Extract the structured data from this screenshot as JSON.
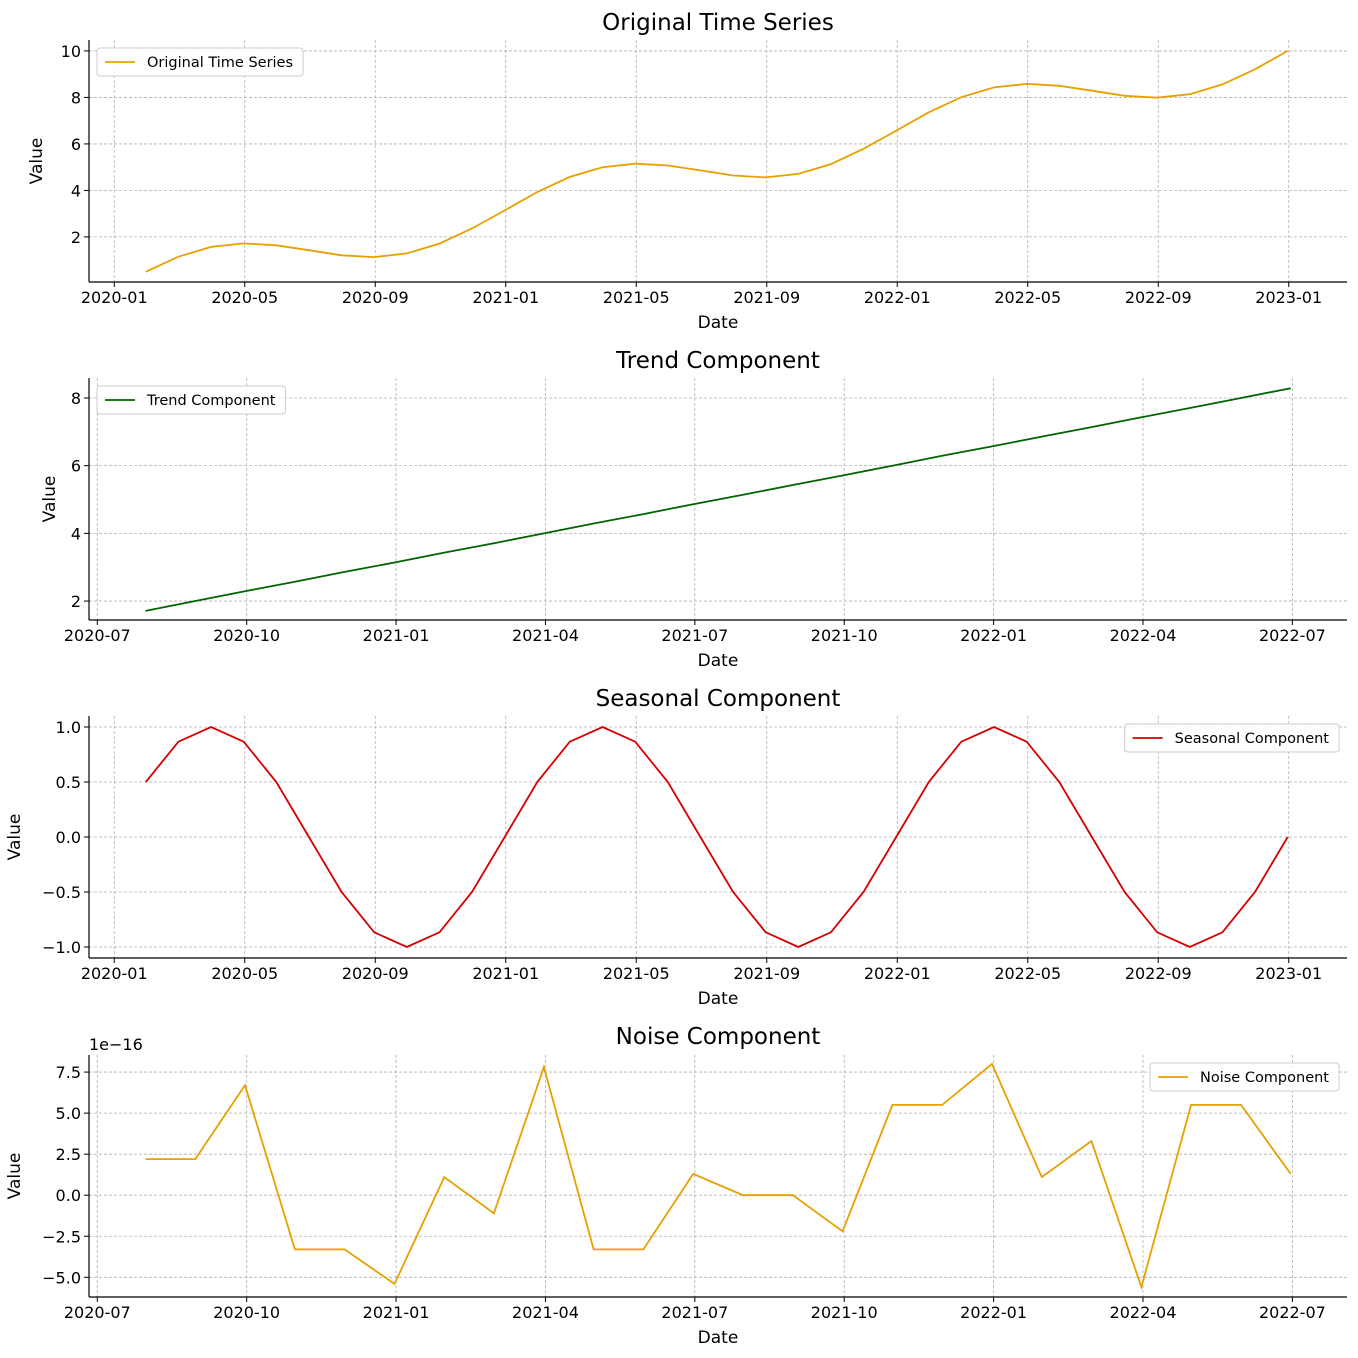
{
  "chart_data": [
    {
      "type": "line",
      "title": "Original Time Series",
      "xlabel": "Date",
      "ylabel": "Value",
      "legend": {
        "label": "Original Time Series",
        "placement": "upper-left"
      },
      "color": "#e8a000",
      "grid": true,
      "xlim": [
        "2019-12-08",
        "2023-02-23"
      ],
      "ylim": [
        0.06,
        10.47
      ],
      "xticks": [
        {
          "date": "2020-01-01",
          "label": "2020-01"
        },
        {
          "date": "2020-05-01",
          "label": "2020-05"
        },
        {
          "date": "2020-09-01",
          "label": "2020-09"
        },
        {
          "date": "2021-01-01",
          "label": "2021-01"
        },
        {
          "date": "2021-05-01",
          "label": "2021-05"
        },
        {
          "date": "2021-09-01",
          "label": "2021-09"
        },
        {
          "date": "2022-01-01",
          "label": "2022-01"
        },
        {
          "date": "2022-05-01",
          "label": "2022-05"
        },
        {
          "date": "2022-09-01",
          "label": "2022-09"
        },
        {
          "date": "2023-01-01",
          "label": "2023-01"
        }
      ],
      "yticks": [
        {
          "v": 2,
          "label": "2"
        },
        {
          "v": 4,
          "label": "4"
        },
        {
          "v": 6,
          "label": "6"
        },
        {
          "v": 8,
          "label": "8"
        },
        {
          "v": 10,
          "label": "10"
        }
      ],
      "x": [
        "2020-01-31",
        "2020-02-29",
        "2020-03-31",
        "2020-04-30",
        "2020-05-31",
        "2020-06-30",
        "2020-07-31",
        "2020-08-31",
        "2020-09-30",
        "2020-10-31",
        "2020-11-30",
        "2020-12-31",
        "2021-01-31",
        "2021-02-28",
        "2021-03-31",
        "2021-04-30",
        "2021-05-31",
        "2021-06-30",
        "2021-07-31",
        "2021-08-31",
        "2021-09-30",
        "2021-10-31",
        "2021-11-30",
        "2021-12-31",
        "2022-01-31",
        "2022-02-28",
        "2022-03-31",
        "2022-04-30",
        "2022-05-31",
        "2022-06-30",
        "2022-07-31",
        "2022-08-31",
        "2022-09-30",
        "2022-10-31",
        "2022-11-30",
        "2022-12-31"
      ],
      "values": [
        0.5,
        1.15,
        1.57,
        1.72,
        1.64,
        1.43,
        1.21,
        1.13,
        1.29,
        1.71,
        2.36,
        3.14,
        3.93,
        4.58,
        5.0,
        5.15,
        5.07,
        4.86,
        4.64,
        4.56,
        4.71,
        5.13,
        5.79,
        6.57,
        7.36,
        8.01,
        8.43,
        8.58,
        8.5,
        8.29,
        8.07,
        7.99,
        8.14,
        8.56,
        9.21,
        10.0
      ]
    },
    {
      "type": "line",
      "title": "Trend Component",
      "xlabel": "Date",
      "ylabel": "Value",
      "legend": {
        "label": "Trend Component",
        "placement": "upper-left"
      },
      "color": "#006400",
      "grid": true,
      "xlim": [
        "2020-06-26",
        "2022-08-04"
      ],
      "ylim": [
        1.44,
        8.59
      ],
      "xticks": [
        {
          "date": "2020-07-01",
          "label": "2020-07"
        },
        {
          "date": "2020-10-01",
          "label": "2020-10"
        },
        {
          "date": "2021-01-01",
          "label": "2021-01"
        },
        {
          "date": "2021-04-01",
          "label": "2021-04"
        },
        {
          "date": "2021-07-01",
          "label": "2021-07"
        },
        {
          "date": "2021-10-01",
          "label": "2021-10"
        },
        {
          "date": "2022-01-01",
          "label": "2022-01"
        },
        {
          "date": "2022-04-01",
          "label": "2022-04"
        },
        {
          "date": "2022-07-01",
          "label": "2022-07"
        }
      ],
      "yticks": [
        {
          "v": 2,
          "label": "2"
        },
        {
          "v": 4,
          "label": "4"
        },
        {
          "v": 6,
          "label": "6"
        },
        {
          "v": 8,
          "label": "8"
        }
      ],
      "x": [
        "2020-07-31",
        "2020-08-31",
        "2020-09-30",
        "2020-10-31",
        "2020-11-30",
        "2020-12-31",
        "2021-01-31",
        "2021-02-28",
        "2021-03-31",
        "2021-04-30",
        "2021-05-31",
        "2021-06-30",
        "2021-07-31",
        "2021-08-31",
        "2021-09-30",
        "2021-10-31",
        "2021-11-30",
        "2021-12-31",
        "2022-01-31",
        "2022-02-28",
        "2022-03-31",
        "2022-04-30",
        "2022-05-31",
        "2022-06-30"
      ],
      "values": [
        1.71,
        2.0,
        2.29,
        2.57,
        2.86,
        3.14,
        3.43,
        3.71,
        4.0,
        4.29,
        4.57,
        4.86,
        5.14,
        5.43,
        5.71,
        6.0,
        6.29,
        6.57,
        6.86,
        7.14,
        7.43,
        7.71,
        8.0,
        8.29
      ]
    },
    {
      "type": "line",
      "title": "Seasonal Component",
      "xlabel": "Date",
      "ylabel": "Value",
      "legend": {
        "label": "Seasonal Component",
        "placement": "upper-right"
      },
      "color": "#d40000",
      "grid": true,
      "xlim": [
        "2019-12-08",
        "2023-02-23"
      ],
      "ylim": [
        -1.1,
        1.1
      ],
      "xticks": [
        {
          "date": "2020-01-01",
          "label": "2020-01"
        },
        {
          "date": "2020-05-01",
          "label": "2020-05"
        },
        {
          "date": "2020-09-01",
          "label": "2020-09"
        },
        {
          "date": "2021-01-01",
          "label": "2021-01"
        },
        {
          "date": "2021-05-01",
          "label": "2021-05"
        },
        {
          "date": "2021-09-01",
          "label": "2021-09"
        },
        {
          "date": "2022-01-01",
          "label": "2022-01"
        },
        {
          "date": "2022-05-01",
          "label": "2022-05"
        },
        {
          "date": "2022-09-01",
          "label": "2022-09"
        },
        {
          "date": "2023-01-01",
          "label": "2023-01"
        }
      ],
      "yticks": [
        {
          "v": -1,
          "label": "−1.0"
        },
        {
          "v": -0.5,
          "label": "−0.5"
        },
        {
          "v": 0,
          "label": "0.0"
        },
        {
          "v": 0.5,
          "label": "0.5"
        },
        {
          "v": 1,
          "label": "1.0"
        }
      ],
      "x": [
        "2020-01-31",
        "2020-02-29",
        "2020-03-31",
        "2020-04-30",
        "2020-05-31",
        "2020-06-30",
        "2020-07-31",
        "2020-08-31",
        "2020-09-30",
        "2020-10-31",
        "2020-11-30",
        "2020-12-31",
        "2021-01-31",
        "2021-02-28",
        "2021-03-31",
        "2021-04-30",
        "2021-05-31",
        "2021-06-30",
        "2021-07-31",
        "2021-08-31",
        "2021-09-30",
        "2021-10-31",
        "2021-11-30",
        "2021-12-31",
        "2022-01-31",
        "2022-02-28",
        "2022-03-31",
        "2022-04-30",
        "2022-05-31",
        "2022-06-30",
        "2022-07-31",
        "2022-08-31",
        "2022-09-30",
        "2022-10-31",
        "2022-11-30",
        "2022-12-31"
      ],
      "values": [
        0.5,
        0.866,
        1.0,
        0.866,
        0.5,
        0.0,
        -0.5,
        -0.866,
        -1.0,
        -0.866,
        -0.5,
        0.0,
        0.5,
        0.866,
        1.0,
        0.866,
        0.5,
        0.0,
        -0.5,
        -0.866,
        -1.0,
        -0.866,
        -0.5,
        0.0,
        0.5,
        0.866,
        1.0,
        0.866,
        0.5,
        0.0,
        -0.5,
        -0.866,
        -1.0,
        -0.866,
        -0.5,
        0.0
      ]
    },
    {
      "type": "line",
      "title": "Noise Component",
      "xlabel": "Date",
      "ylabel": "Value",
      "offset_text": "1e−16",
      "legend": {
        "label": "Noise Component",
        "placement": "upper-right"
      },
      "color": "#e8a000",
      "grid": true,
      "xlim": [
        "2020-06-26",
        "2022-08-04"
      ],
      "ylim": [
        -6.2,
        8.54
      ],
      "xticks": [
        {
          "date": "2020-07-01",
          "label": "2020-07"
        },
        {
          "date": "2020-10-01",
          "label": "2020-10"
        },
        {
          "date": "2021-01-01",
          "label": "2021-01"
        },
        {
          "date": "2021-04-01",
          "label": "2021-04"
        },
        {
          "date": "2021-07-01",
          "label": "2021-07"
        },
        {
          "date": "2021-10-01",
          "label": "2021-10"
        },
        {
          "date": "2022-01-01",
          "label": "2022-01"
        },
        {
          "date": "2022-04-01",
          "label": "2022-04"
        },
        {
          "date": "2022-07-01",
          "label": "2022-07"
        }
      ],
      "yticks": [
        {
          "v": -5,
          "label": "−5.0"
        },
        {
          "v": -2.5,
          "label": "−2.5"
        },
        {
          "v": 0,
          "label": "0.0"
        },
        {
          "v": 2.5,
          "label": "2.5"
        },
        {
          "v": 5,
          "label": "5.0"
        },
        {
          "v": 7.5,
          "label": "7.5"
        }
      ],
      "x": [
        "2020-07-31",
        "2020-08-31",
        "2020-09-30",
        "2020-10-31",
        "2020-11-30",
        "2020-12-31",
        "2021-01-31",
        "2021-02-28",
        "2021-03-31",
        "2021-04-30",
        "2021-05-31",
        "2021-06-30",
        "2021-07-31",
        "2021-08-31",
        "2021-09-30",
        "2021-10-31",
        "2021-11-30",
        "2021-12-31",
        "2022-01-31",
        "2022-02-28",
        "2022-03-31",
        "2022-04-30",
        "2022-05-31",
        "2022-06-30"
      ],
      "values": [
        2.2,
        2.2,
        6.7,
        -3.3,
        -3.3,
        -5.4,
        1.1,
        -1.1,
        7.8,
        -3.3,
        -3.3,
        1.3,
        0.0,
        0.0,
        -2.2,
        5.5,
        5.5,
        8.0,
        1.1,
        3.3,
        -5.6,
        5.5,
        5.5,
        1.3
      ]
    }
  ]
}
